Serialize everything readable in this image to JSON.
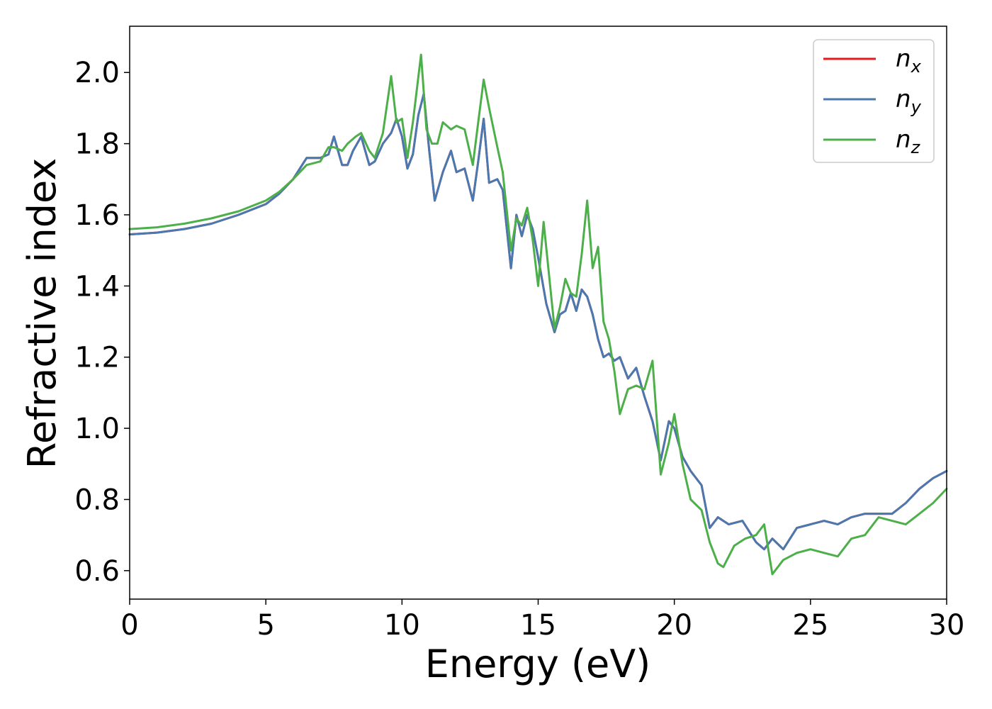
{
  "chart_data": {
    "type": "line",
    "title": "",
    "xlabel": "Energy (eV)",
    "ylabel": "Refractive index",
    "xlim": [
      0,
      30
    ],
    "ylim": [
      0.52,
      2.13
    ],
    "xticks": [
      0,
      5,
      10,
      15,
      20,
      25,
      30
    ],
    "xtick_labels": [
      "0",
      "5",
      "10",
      "15",
      "20",
      "25",
      "30"
    ],
    "yticks": [
      0.6,
      0.8,
      1.0,
      1.2,
      1.4,
      1.6,
      1.8,
      2.0
    ],
    "ytick_labels": [
      "0.6",
      "0.8",
      "1.0",
      "1.2",
      "1.4",
      "1.6",
      "1.8",
      "2.0"
    ],
    "grid": false,
    "legend_position": "top-right",
    "series": [
      {
        "name": "n_x",
        "legend_main": "n",
        "legend_sub": "x",
        "color": "#e41a1c",
        "x": [
          0,
          1,
          2,
          3,
          4,
          5,
          5.5,
          6,
          6.5,
          7,
          7.3,
          7.5,
          7.8,
          8,
          8.2,
          8.5,
          8.8,
          9,
          9.3,
          9.6,
          9.8,
          10,
          10.2,
          10.4,
          10.6,
          10.8,
          11,
          11.2,
          11.5,
          11.8,
          12,
          12.3,
          12.6,
          12.8,
          13,
          13.2,
          13.5,
          13.7,
          14,
          14.2,
          14.4,
          14.6,
          14.8,
          15,
          15.3,
          15.6,
          15.8,
          16,
          16.2,
          16.4,
          16.6,
          16.8,
          17,
          17.2,
          17.4,
          17.6,
          17.8,
          18,
          18.3,
          18.6,
          18.9,
          19.2,
          19.5,
          19.8,
          20,
          20.3,
          20.6,
          21,
          21.3,
          21.6,
          22,
          22.5,
          23,
          23.3,
          23.6,
          24,
          24.5,
          25,
          25.5,
          26,
          26.5,
          27,
          27.5,
          28,
          28.5,
          29,
          29.5,
          30
        ],
        "y": [
          1.545,
          1.55,
          1.56,
          1.575,
          1.6,
          1.63,
          1.66,
          1.7,
          1.76,
          1.76,
          1.77,
          1.82,
          1.74,
          1.74,
          1.78,
          1.82,
          1.74,
          1.75,
          1.8,
          1.83,
          1.87,
          1.82,
          1.73,
          1.77,
          1.88,
          1.94,
          1.78,
          1.64,
          1.72,
          1.78,
          1.72,
          1.73,
          1.64,
          1.75,
          1.87,
          1.69,
          1.7,
          1.67,
          1.45,
          1.6,
          1.54,
          1.6,
          1.56,
          1.48,
          1.35,
          1.27,
          1.32,
          1.33,
          1.38,
          1.33,
          1.39,
          1.37,
          1.32,
          1.25,
          1.2,
          1.21,
          1.19,
          1.2,
          1.14,
          1.17,
          1.09,
          1.02,
          0.91,
          1.02,
          1.0,
          0.92,
          0.88,
          0.84,
          0.72,
          0.75,
          0.73,
          0.74,
          0.68,
          0.66,
          0.69,
          0.66,
          0.72,
          0.73,
          0.74,
          0.73,
          0.75,
          0.76,
          0.76,
          0.76,
          0.79,
          0.83,
          0.86,
          0.88
        ]
      },
      {
        "name": "n_y",
        "legend_main": "n",
        "legend_sub": "y",
        "color": "#4a78b0",
        "x": [
          0,
          1,
          2,
          3,
          4,
          5,
          5.5,
          6,
          6.5,
          7,
          7.3,
          7.5,
          7.8,
          8,
          8.2,
          8.5,
          8.8,
          9,
          9.3,
          9.6,
          9.8,
          10,
          10.2,
          10.4,
          10.6,
          10.8,
          11,
          11.2,
          11.5,
          11.8,
          12,
          12.3,
          12.6,
          12.8,
          13,
          13.2,
          13.5,
          13.7,
          14,
          14.2,
          14.4,
          14.6,
          14.8,
          15,
          15.3,
          15.6,
          15.8,
          16,
          16.2,
          16.4,
          16.6,
          16.8,
          17,
          17.2,
          17.4,
          17.6,
          17.8,
          18,
          18.3,
          18.6,
          18.9,
          19.2,
          19.5,
          19.8,
          20,
          20.3,
          20.6,
          21,
          21.3,
          21.6,
          22,
          22.5,
          23,
          23.3,
          23.6,
          24,
          24.5,
          25,
          25.5,
          26,
          26.5,
          27,
          27.5,
          28,
          28.5,
          29,
          29.5,
          30
        ],
        "y": [
          1.545,
          1.55,
          1.56,
          1.575,
          1.6,
          1.63,
          1.66,
          1.7,
          1.76,
          1.76,
          1.77,
          1.82,
          1.74,
          1.74,
          1.78,
          1.82,
          1.74,
          1.75,
          1.8,
          1.83,
          1.87,
          1.82,
          1.73,
          1.77,
          1.88,
          1.94,
          1.78,
          1.64,
          1.72,
          1.78,
          1.72,
          1.73,
          1.64,
          1.75,
          1.87,
          1.69,
          1.7,
          1.67,
          1.45,
          1.6,
          1.54,
          1.6,
          1.56,
          1.48,
          1.35,
          1.27,
          1.32,
          1.33,
          1.38,
          1.33,
          1.39,
          1.37,
          1.32,
          1.25,
          1.2,
          1.21,
          1.19,
          1.2,
          1.14,
          1.17,
          1.09,
          1.02,
          0.91,
          1.02,
          1.0,
          0.92,
          0.88,
          0.84,
          0.72,
          0.75,
          0.73,
          0.74,
          0.68,
          0.66,
          0.69,
          0.66,
          0.72,
          0.73,
          0.74,
          0.73,
          0.75,
          0.76,
          0.76,
          0.76,
          0.79,
          0.83,
          0.86,
          0.88
        ]
      },
      {
        "name": "n_z",
        "legend_main": "n",
        "legend_sub": "z",
        "color": "#4daf4a",
        "x": [
          0,
          1,
          2,
          3,
          4,
          5,
          5.5,
          6,
          6.5,
          7,
          7.3,
          7.5,
          7.8,
          8,
          8.3,
          8.5,
          8.8,
          9,
          9.3,
          9.6,
          9.8,
          10,
          10.2,
          10.4,
          10.7,
          10.9,
          11.1,
          11.3,
          11.5,
          11.8,
          12,
          12.3,
          12.6,
          12.8,
          13,
          13.2,
          13.5,
          13.7,
          14,
          14.2,
          14.4,
          14.6,
          14.8,
          15,
          15.2,
          15.6,
          15.8,
          16,
          16.2,
          16.4,
          16.6,
          16.8,
          17,
          17.2,
          17.4,
          17.6,
          17.8,
          18,
          18.3,
          18.6,
          18.9,
          19.2,
          19.5,
          19.8,
          20,
          20.3,
          20.6,
          21,
          21.3,
          21.6,
          21.8,
          22.2,
          22.6,
          23,
          23.3,
          23.6,
          24,
          24.5,
          25,
          25.5,
          26,
          26.5,
          27,
          27.5,
          28,
          28.5,
          29,
          29.5,
          30
        ],
        "y": [
          1.56,
          1.565,
          1.575,
          1.59,
          1.61,
          1.64,
          1.665,
          1.7,
          1.74,
          1.75,
          1.79,
          1.79,
          1.78,
          1.8,
          1.82,
          1.83,
          1.78,
          1.76,
          1.83,
          1.99,
          1.86,
          1.87,
          1.76,
          1.86,
          2.05,
          1.84,
          1.8,
          1.8,
          1.86,
          1.84,
          1.85,
          1.84,
          1.74,
          1.86,
          1.98,
          1.9,
          1.79,
          1.72,
          1.5,
          1.59,
          1.57,
          1.62,
          1.53,
          1.4,
          1.58,
          1.28,
          1.34,
          1.42,
          1.38,
          1.37,
          1.49,
          1.64,
          1.45,
          1.51,
          1.3,
          1.25,
          1.16,
          1.04,
          1.11,
          1.12,
          1.11,
          1.19,
          0.87,
          0.96,
          1.04,
          0.9,
          0.8,
          0.77,
          0.68,
          0.62,
          0.61,
          0.67,
          0.69,
          0.7,
          0.73,
          0.59,
          0.63,
          0.65,
          0.66,
          0.65,
          0.64,
          0.69,
          0.7,
          0.75,
          0.74,
          0.73,
          0.76,
          0.79,
          0.83
        ]
      }
    ]
  }
}
